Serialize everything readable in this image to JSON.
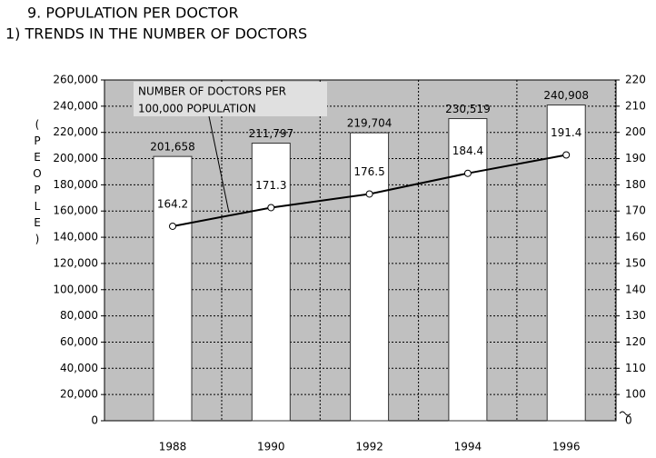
{
  "chart_data": {
    "type": "bar_line",
    "title": "9. POPULATION PER DOCTOR",
    "subtitle": "1) TRENDS IN THE NUMBER OF DOCTORS",
    "y_axis_label": "(PEOPLE)",
    "annotation": [
      "NUMBER OF DOCTORS PER",
      "100,000 POPULATION"
    ],
    "categories": [
      "1988",
      "1990",
      "1992",
      "1994",
      "1996"
    ],
    "series": [
      {
        "type": "bar",
        "color": "#ffffff",
        "values": [
          201658,
          211797,
          219704,
          230519,
          240908
        ],
        "value_labels": [
          "201,658",
          "211,797",
          "219,704",
          "230,519",
          "240,908"
        ]
      },
      {
        "type": "line",
        "axis": "y2",
        "color": "#000000",
        "values": [
          164.2,
          171.3,
          176.5,
          184.4,
          191.4
        ]
      }
    ],
    "ylim": [
      0,
      260000
    ],
    "yticks": [
      0,
      {
        "value": 20000,
        "label": "20,000"
      },
      {
        "value": 40000,
        "label": "40,000"
      },
      {
        "value": 60000,
        "label": "60,000"
      },
      {
        "value": 80000,
        "label": "80,000"
      },
      {
        "value": 100000,
        "label": "100,000"
      },
      {
        "value": 120000,
        "label": "120,000"
      },
      {
        "value": 140000,
        "label": "140,000"
      },
      {
        "value": 160000,
        "label": "160,000"
      },
      {
        "value": 180000,
        "label": "180,000"
      },
      {
        "value": 200000,
        "label": "200,000"
      },
      {
        "value": 220000,
        "label": "220,000"
      },
      {
        "value": 240000,
        "label": "240,000"
      },
      {
        "value": 260000,
        "label": "260,000"
      }
    ],
    "y2lim": [
      90,
      220
    ],
    "y2ticks": [
      100,
      110,
      120,
      130,
      140,
      150,
      160,
      170,
      180,
      190,
      200,
      210,
      220
    ],
    "y2_break_label": "0",
    "grid": true,
    "plot_background": "#c0c0c0"
  }
}
